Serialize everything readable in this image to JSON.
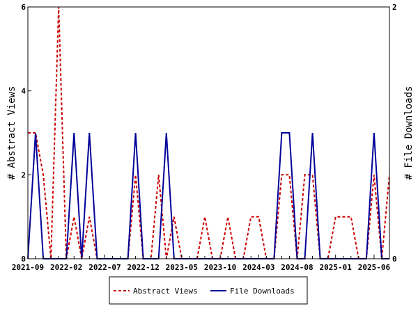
{
  "chart_data": {
    "type": "line",
    "x": [
      "2021-09",
      "2021-10",
      "2021-11",
      "2021-12",
      "2022-01",
      "2022-02",
      "2022-03",
      "2022-04",
      "2022-05",
      "2022-06",
      "2022-07",
      "2022-08",
      "2022-09",
      "2022-10",
      "2022-11",
      "2022-12",
      "2023-01",
      "2023-02",
      "2023-03",
      "2023-04",
      "2023-05",
      "2023-06",
      "2023-07",
      "2023-08",
      "2023-09",
      "2023-10",
      "2023-11",
      "2023-12",
      "2024-01",
      "2024-02",
      "2024-03",
      "2024-04",
      "2024-05",
      "2024-06",
      "2024-07",
      "2024-08",
      "2024-09",
      "2024-10",
      "2024-11",
      "2024-12",
      "2025-01",
      "2025-02",
      "2025-03",
      "2025-04",
      "2025-05",
      "2025-06",
      "2025-07",
      "2025-08"
    ],
    "x_tick_labels": [
      "2021-09",
      "2022-02",
      "2022-07",
      "2022-12",
      "2023-05",
      "2023-10",
      "2024-03",
      "2024-08",
      "2025-01",
      "2025-06"
    ],
    "series": [
      {
        "name": "Abstract Views",
        "axis": "left",
        "color": "#cc0000",
        "dash": "dashed",
        "values": [
          3,
          3,
          2,
          0,
          6,
          0,
          1,
          0,
          1,
          0,
          0,
          0,
          0,
          0,
          2,
          0,
          0,
          2,
          0,
          1,
          0,
          0,
          0,
          1,
          0,
          0,
          1,
          0,
          0,
          1,
          1,
          0,
          0,
          2,
          2,
          0,
          2,
          2,
          0,
          0,
          1,
          1,
          1,
          0,
          0,
          2,
          0,
          2
        ]
      },
      {
        "name": "File Downloads",
        "axis": "right",
        "color": "#000099",
        "dash": "solid",
        "values": [
          0,
          1,
          0,
          0,
          0,
          0,
          1,
          0,
          1,
          0,
          0,
          0,
          0,
          0,
          1,
          0,
          0,
          0,
          1,
          0,
          0,
          0,
          0,
          0,
          0,
          0,
          0,
          0,
          0,
          0,
          0,
          0,
          0,
          1,
          1,
          0,
          0,
          1,
          0,
          0,
          0,
          0,
          0,
          0,
          0,
          1,
          0,
          0
        ]
      }
    ],
    "y_left": {
      "label": "# Abstract Views",
      "ylim": [
        0,
        6
      ],
      "ticks": [
        "0",
        "2",
        "4",
        "6"
      ]
    },
    "y_right": {
      "label": "# File Downloads",
      "ylim": [
        0,
        2
      ],
      "ticks": [
        "0",
        "2"
      ]
    },
    "legend": {
      "placement": "bottom",
      "entries": [
        "Abstract Views",
        "File Downloads"
      ]
    },
    "grid": false
  }
}
